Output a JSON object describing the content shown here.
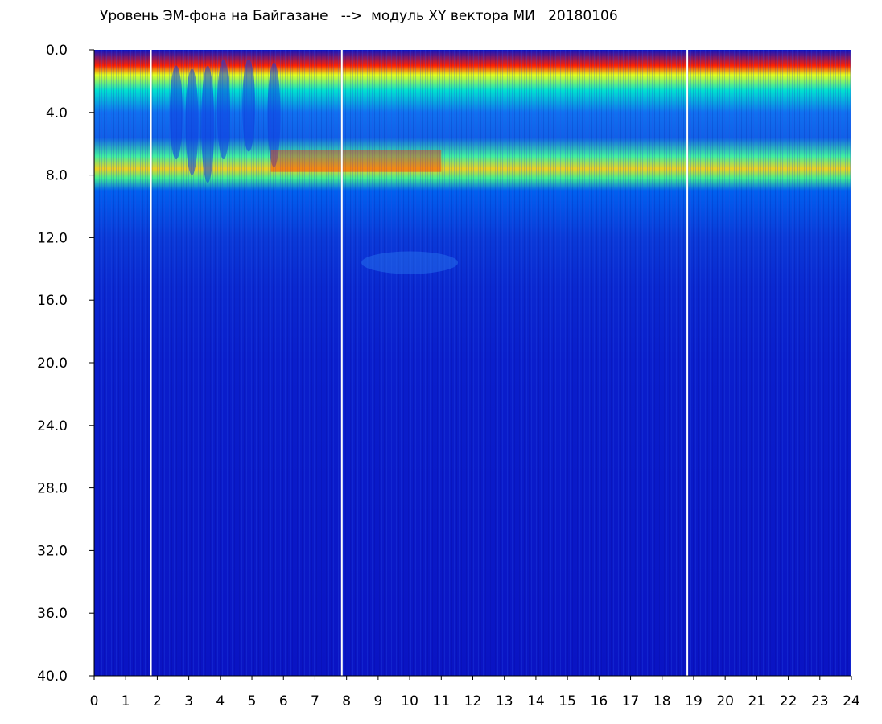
{
  "chart_data": {
    "type": "heatmap",
    "title": "Уровень ЭМ-фона на Байгазане   -->  модуль XY вектора МИ   20180106",
    "xlabel": "",
    "ylabel": "",
    "xlim": [
      0,
      24
    ],
    "ylim": [
      0,
      40
    ],
    "y_axis_inverted": true,
    "x_ticks": [
      "0",
      "1",
      "2",
      "3",
      "4",
      "5",
      "6",
      "7",
      "8",
      "9",
      "10",
      "11",
      "12",
      "13",
      "14",
      "15",
      "16",
      "17",
      "18",
      "19",
      "20",
      "21",
      "22",
      "23",
      "24"
    ],
    "y_ticks": [
      "0.0",
      "4.0",
      "8.0",
      "12.0",
      "16.0",
      "20.0",
      "24.0",
      "28.0",
      "32.0",
      "36.0",
      "40.0"
    ],
    "grid": false,
    "colormap": [
      "#0000c8",
      "#1450f0",
      "#00b4ff",
      "#00e6c8",
      "#64ff64",
      "#f0f000",
      "#ff8c00",
      "#ff0000"
    ],
    "background_level_color": "#0a14c8",
    "data_gaps_x": [
      1.8,
      7.85,
      18.8
    ],
    "bands": [
      {
        "name": "",
        "y_from": 1.0,
        "y_to": 2.5,
        "level": "high"
      },
      {
        "name": "",
        "y_from": 2.5,
        "y_to": 6.5,
        "level": "medium"
      },
      {
        "name": "",
        "y_from": 6.5,
        "y_to": 8.5,
        "level": "high"
      },
      {
        "name": "",
        "y_from": 8.5,
        "y_to": 15.0,
        "level": "low-medium"
      },
      {
        "name": "",
        "y_from": 15.0,
        "y_to": 40.0,
        "level": "background"
      }
    ]
  }
}
